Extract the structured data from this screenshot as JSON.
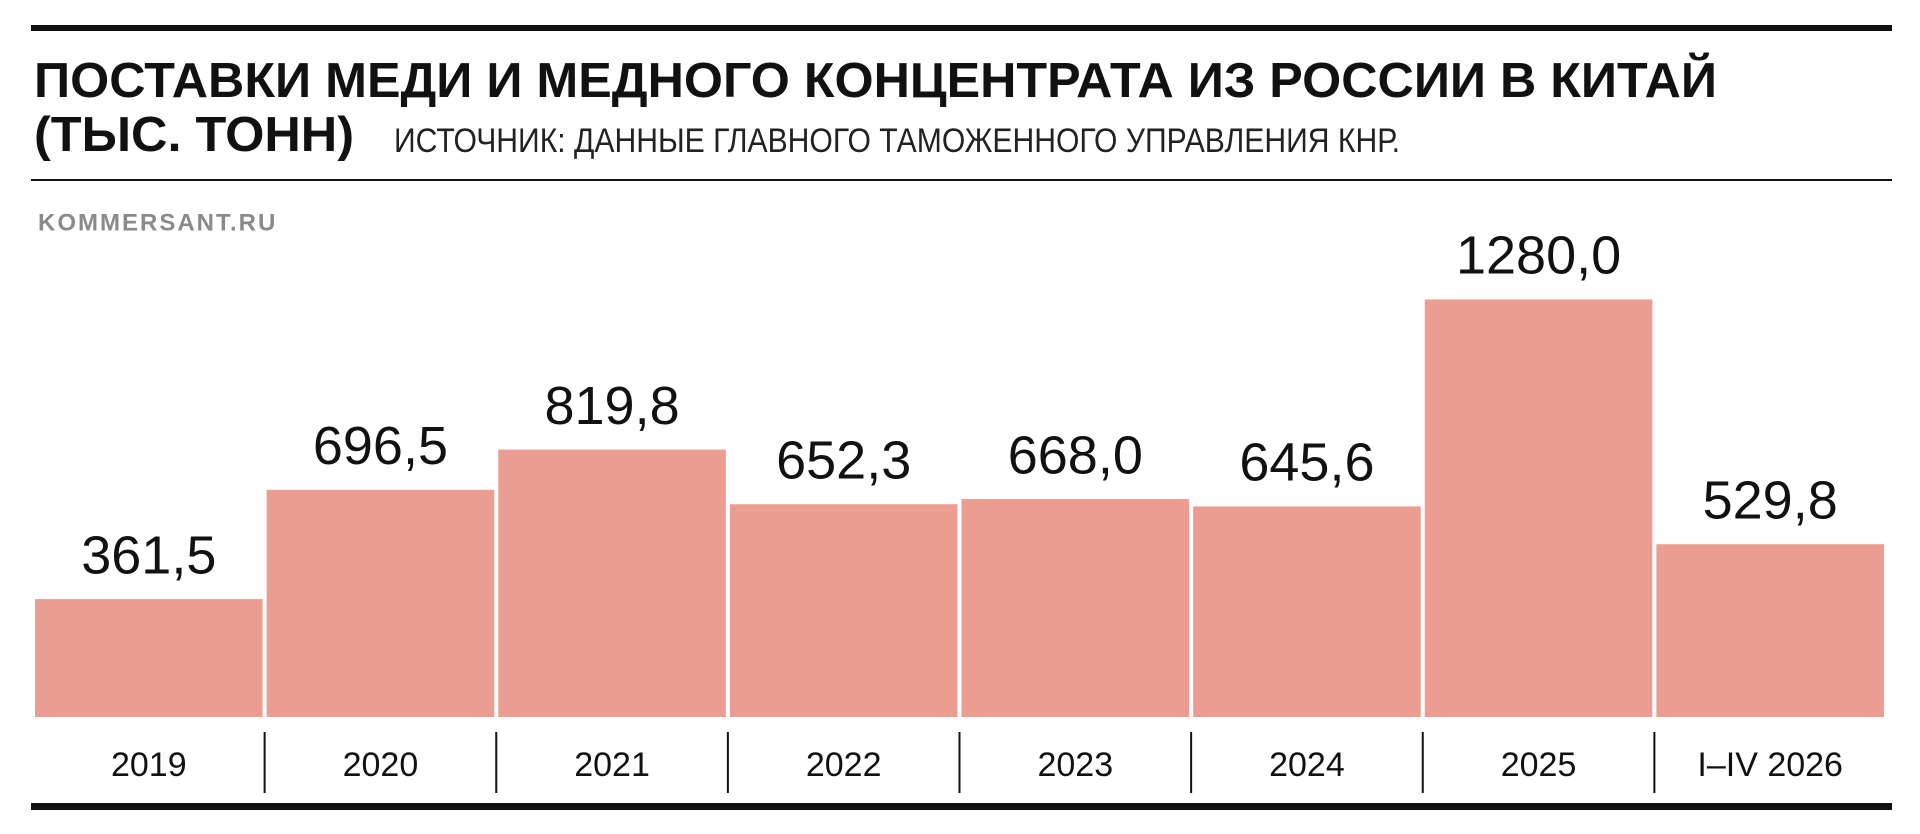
{
  "chart_data": {
    "type": "bar",
    "title": "ПОСТАВКИ МЕДИ И МЕДНОГО КОНЦЕНТРАТА ИЗ РОССИИ В КИТАЙ",
    "unit": "(ТЫС. ТОНН)",
    "source": "ИСТОЧНИК: ДАННЫЕ ГЛАВНОГО ТАМОЖЕННОГО УПРАВЛЕНИЯ КНР.",
    "credit": "KOMMERSANT.RU",
    "categories": [
      "2019",
      "2020",
      "2021",
      "2022",
      "2023",
      "2024",
      "2025",
      "I–IV 2026"
    ],
    "values": [
      361.5,
      696.5,
      819.8,
      652.3,
      668.0,
      645.6,
      1280.0,
      529.8
    ],
    "value_labels": [
      "361,5",
      "696,5",
      "819,8",
      "652,3",
      "668,0",
      "645,6",
      "1280,0",
      "529,8"
    ],
    "color": "#ec9d92"
  }
}
